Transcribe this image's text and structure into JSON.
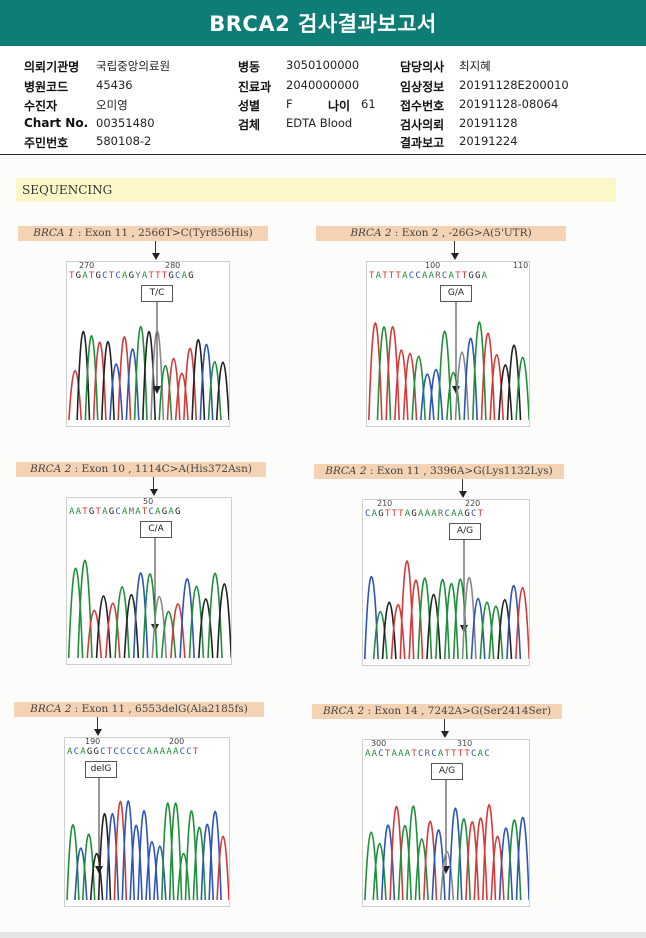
{
  "header": {
    "title": "BRCA2 검사결과보고서"
  },
  "patient": {
    "col1": [
      {
        "label": "의뢰기관명",
        "value": "국립중앙의료원"
      },
      {
        "label": "병원코드",
        "value": "45436"
      },
      {
        "label": "수진자",
        "value": "오미영"
      },
      {
        "label": "Chart No.",
        "value": "00351480"
      },
      {
        "label": "주민번호",
        "value": "580108-2"
      }
    ],
    "col2": [
      {
        "label": "병동",
        "value": "3050100000"
      },
      {
        "label": "진료과",
        "value": "2040000000"
      },
      {
        "label": "성별",
        "value": "F"
      },
      {
        "label": "검체",
        "value": "EDTA Blood"
      }
    ],
    "age": {
      "label": "나이",
      "value": "61"
    },
    "col3": [
      {
        "label": "담당의사",
        "value": "최지혜"
      },
      {
        "label": "임상정보",
        "value": "20191128E200010"
      },
      {
        "label": "접수번호",
        "value": "20191128-08064"
      },
      {
        "label": "검사의뢰",
        "value": "20191128"
      },
      {
        "label": "결과보고",
        "value": "20191224"
      }
    ]
  },
  "section": {
    "title": "SEQUENCING"
  },
  "panels": [
    {
      "gene": "BRCA 1",
      "detail": " : Exon 11 , 2566T>C(Tyr856His)",
      "sequence": "TGATGCTCAGYATTTGCAG",
      "pos_left": "270",
      "pos_right": "280",
      "call": "T/C",
      "colors": {
        "T": "#d43a3a",
        "G": "#222222",
        "A": "#1f8f3a",
        "C": "#2d55b8"
      }
    },
    {
      "gene": "BRCA 2",
      "detail": " : Exon 2 , -26G>A(5'UTR)",
      "sequence": "TATTTACCAARCATTGGA",
      "pos_left": "100",
      "pos_right": "110",
      "call": "G/A"
    },
    {
      "gene": "BRCA 2",
      "detail": " : Exon 10 , 1114C>A(His372Asn)",
      "sequence": "AATGTAGCAMATCAGAG",
      "pos_left": "50",
      "pos_right": "",
      "call": "C/A"
    },
    {
      "gene": "BRCA 2",
      "detail": " : Exon 11 , 3396A>G(Lys1132Lys)",
      "sequence": "CAGTTTAGAAARCAAGCT",
      "pos_left": "210",
      "pos_right": "220",
      "call": "A/G"
    },
    {
      "gene": "BRCA 2",
      "detail": " : Exon 11 , 6553delG(Ala2185fs)",
      "sequence": "ACAGGCTCCCCCAAAAACCT",
      "pos_left": "190",
      "pos_right": "200",
      "call": "delG"
    },
    {
      "gene": "BRCA 2",
      "detail": " : Exon 14 , 7242A>G(Ser2414Ser)",
      "sequence": "AACTAAATCRCATTTTCAC",
      "pos_left": "300",
      "pos_right": "310",
      "call": "A/G"
    }
  ]
}
